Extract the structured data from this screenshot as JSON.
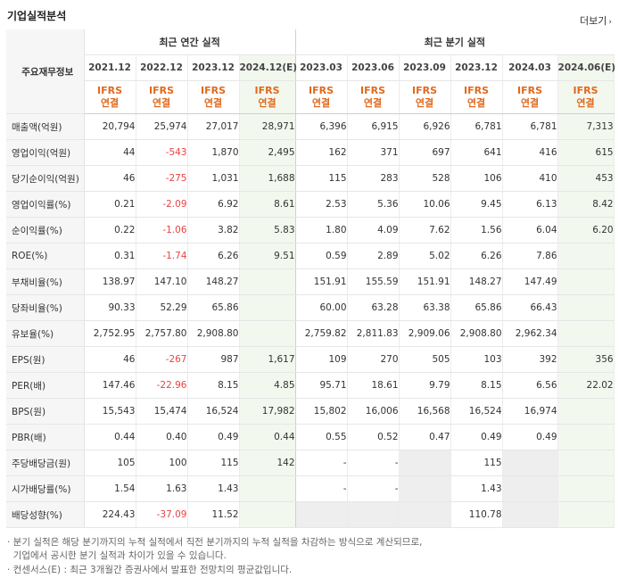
{
  "section_title": "기업실적분석",
  "more_label": "더보기",
  "table": {
    "row_header": "주요재무정보",
    "annual_group": "최근 연간 실적",
    "quarter_group": "최근 분기 실적",
    "annual_dates": [
      "2021.12",
      "2022.12",
      "2023.12",
      "2024.12(E)"
    ],
    "quarter_dates": [
      "2023.03",
      "2023.06",
      "2023.09",
      "2023.12",
      "2024.03",
      "2024.06(E)"
    ],
    "ifrs_top": "IFRS",
    "ifrs_bottom": "연결",
    "rows": [
      {
        "label": "매출액(억원)",
        "values": [
          "20,794",
          "25,974",
          "27,017",
          "28,971",
          "6,396",
          "6,915",
          "6,926",
          "6,781",
          "6,781",
          "7,313"
        ]
      },
      {
        "label": "영업이익(억원)",
        "values": [
          "44",
          "-543",
          "1,870",
          "2,495",
          "162",
          "371",
          "697",
          "641",
          "416",
          "615"
        ]
      },
      {
        "label": "당기순이익(억원)",
        "values": [
          "46",
          "-275",
          "1,031",
          "1,688",
          "115",
          "283",
          "528",
          "106",
          "410",
          "453"
        ]
      },
      {
        "label": "영업이익률(%)",
        "values": [
          "0.21",
          "-2.09",
          "6.92",
          "8.61",
          "2.53",
          "5.36",
          "10.06",
          "9.45",
          "6.13",
          "8.42"
        ]
      },
      {
        "label": "순이익률(%)",
        "values": [
          "0.22",
          "-1.06",
          "3.82",
          "5.83",
          "1.80",
          "4.09",
          "7.62",
          "1.56",
          "6.04",
          "6.20"
        ]
      },
      {
        "label": "ROE(%)",
        "values": [
          "0.31",
          "-1.74",
          "6.26",
          "9.51",
          "0.59",
          "2.89",
          "5.02",
          "6.26",
          "7.86",
          ""
        ]
      },
      {
        "label": "부채비율(%)",
        "values": [
          "138.97",
          "147.10",
          "148.27",
          "",
          "151.91",
          "155.59",
          "151.91",
          "148.27",
          "147.49",
          ""
        ]
      },
      {
        "label": "당좌비율(%)",
        "values": [
          "90.33",
          "52.29",
          "65.86",
          "",
          "60.00",
          "63.28",
          "63.38",
          "65.86",
          "66.43",
          ""
        ]
      },
      {
        "label": "유보율(%)",
        "values": [
          "2,752.95",
          "2,757.80",
          "2,908.80",
          "",
          "2,759.82",
          "2,811.83",
          "2,909.06",
          "2,908.80",
          "2,962.34",
          ""
        ]
      },
      {
        "label": "EPS(원)",
        "values": [
          "46",
          "-267",
          "987",
          "1,617",
          "109",
          "270",
          "505",
          "103",
          "392",
          "356"
        ]
      },
      {
        "label": "PER(배)",
        "values": [
          "147.46",
          "-22.96",
          "8.15",
          "4.85",
          "95.71",
          "18.61",
          "9.79",
          "8.15",
          "6.56",
          "22.02"
        ]
      },
      {
        "label": "BPS(원)",
        "values": [
          "15,543",
          "15,474",
          "16,524",
          "17,982",
          "15,802",
          "16,006",
          "16,568",
          "16,524",
          "16,974",
          ""
        ]
      },
      {
        "label": "PBR(배)",
        "values": [
          "0.44",
          "0.40",
          "0.49",
          "0.44",
          "0.55",
          "0.52",
          "0.47",
          "0.49",
          "0.49",
          ""
        ]
      },
      {
        "label": "주당배당금(원)",
        "values": [
          "105",
          "100",
          "115",
          "142",
          "-",
          "-",
          "",
          "115",
          "",
          ""
        ]
      },
      {
        "label": "시가배당률(%)",
        "values": [
          "1.54",
          "1.63",
          "1.43",
          "",
          "-",
          "-",
          "",
          "1.43",
          "",
          ""
        ]
      },
      {
        "label": "배당성향(%)",
        "values": [
          "224.43",
          "-37.09",
          "11.52",
          "",
          "",
          "",
          "",
          "110.78",
          "",
          ""
        ]
      }
    ]
  },
  "notes": [
    "· 분기 실적은 해당 분기까지의 누적 실적에서 직전 분기까지의 누적 실적을 차감하는 방식으로 계산되므로,",
    "  기업에서 공시한 분기 실적과 차이가 있을 수 있습니다.",
    "· 컨센서스(E) : 최근 3개월간 증권사에서 발표한 전망치의 평균값입니다."
  ],
  "colors": {
    "ifrs": "#e0691d",
    "negative": "#e64444",
    "estimate_bg": "#f3f8ef"
  }
}
